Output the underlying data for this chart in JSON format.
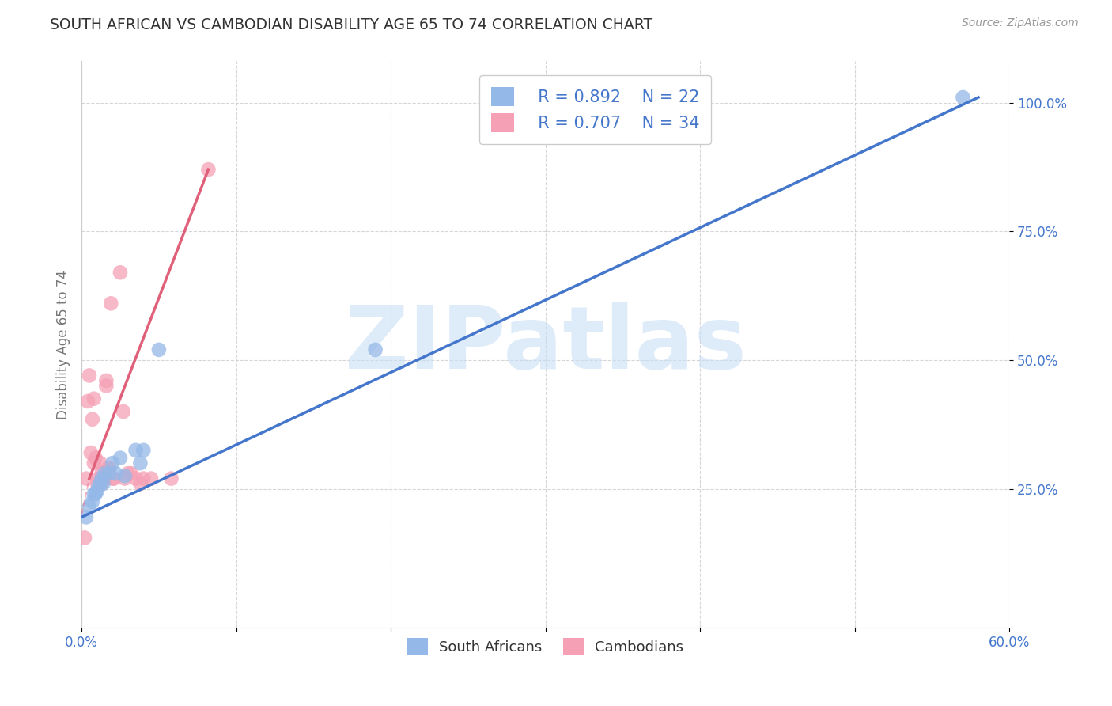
{
  "title": "SOUTH AFRICAN VS CAMBODIAN DISABILITY AGE 65 TO 74 CORRELATION CHART",
  "source": "Source: ZipAtlas.com",
  "ylabel": "Disability Age 65 to 74",
  "xlim": [
    0.0,
    0.6
  ],
  "ylim": [
    -0.02,
    1.08
  ],
  "xticks": [
    0.0,
    0.1,
    0.2,
    0.3,
    0.4,
    0.5,
    0.6
  ],
  "xticklabels": [
    "0.0%",
    "",
    "",
    "",
    "",
    "",
    "60.0%"
  ],
  "yticks": [
    0.25,
    0.5,
    0.75,
    1.0
  ],
  "yticklabels": [
    "25.0%",
    "50.0%",
    "75.0%",
    "100.0%"
  ],
  "sa_color": "#94b8e8",
  "cam_color": "#f5a0b5",
  "sa_line_color": "#4477cc",
  "cam_line_color": "#e0607a",
  "sa_line_x0": 0.0,
  "sa_line_y0": 0.195,
  "sa_line_x1": 0.58,
  "sa_line_y1": 1.01,
  "cam_line_solid_x0": 0.005,
  "cam_line_solid_y0": 0.27,
  "cam_line_solid_x1": 0.082,
  "cam_line_solid_y1": 0.87,
  "cam_line_dash_x0": 0.0,
  "cam_line_dash_y0": 0.2,
  "cam_line_dash_x1": 0.005,
  "cam_line_dash_y1": 0.27,
  "sa_x": [
    0.003,
    0.005,
    0.007,
    0.008,
    0.009,
    0.01,
    0.011,
    0.012,
    0.013,
    0.014,
    0.015,
    0.018,
    0.02,
    0.022,
    0.025,
    0.028,
    0.035,
    0.038,
    0.04,
    0.05,
    0.19,
    0.57
  ],
  "sa_y": [
    0.195,
    0.215,
    0.225,
    0.24,
    0.24,
    0.245,
    0.255,
    0.26,
    0.27,
    0.26,
    0.28,
    0.28,
    0.3,
    0.28,
    0.31,
    0.275,
    0.325,
    0.3,
    0.325,
    0.52,
    0.52,
    1.01
  ],
  "cam_x": [
    0.002,
    0.003,
    0.004,
    0.005,
    0.006,
    0.007,
    0.008,
    0.008,
    0.009,
    0.01,
    0.011,
    0.012,
    0.013,
    0.013,
    0.014,
    0.015,
    0.016,
    0.016,
    0.017,
    0.018,
    0.019,
    0.02,
    0.021,
    0.025,
    0.027,
    0.028,
    0.03,
    0.032,
    0.035,
    0.038,
    0.04,
    0.045,
    0.058,
    0.082
  ],
  "cam_y": [
    0.155,
    0.27,
    0.42,
    0.47,
    0.32,
    0.385,
    0.3,
    0.425,
    0.31,
    0.26,
    0.27,
    0.3,
    0.28,
    0.26,
    0.27,
    0.27,
    0.46,
    0.45,
    0.29,
    0.29,
    0.61,
    0.27,
    0.27,
    0.67,
    0.4,
    0.27,
    0.28,
    0.28,
    0.27,
    0.26,
    0.27,
    0.27,
    0.27,
    0.87
  ],
  "grid_color": "#cccccc",
  "background_color": "#ffffff",
  "title_color": "#333333",
  "axis_label_color": "#777777",
  "tick_color_x": "#4477cc",
  "tick_color_y": "#4477cc",
  "legend_r_sa": "R = 0.892",
  "legend_n_sa": "N = 22",
  "legend_r_cam": "R = 0.707",
  "legend_n_cam": "N = 34",
  "watermark_text": "ZIPatlas",
  "watermark_color": "#c8dff5",
  "bottom_legend_sa": "South Africans",
  "bottom_legend_cam": "Cambodians"
}
